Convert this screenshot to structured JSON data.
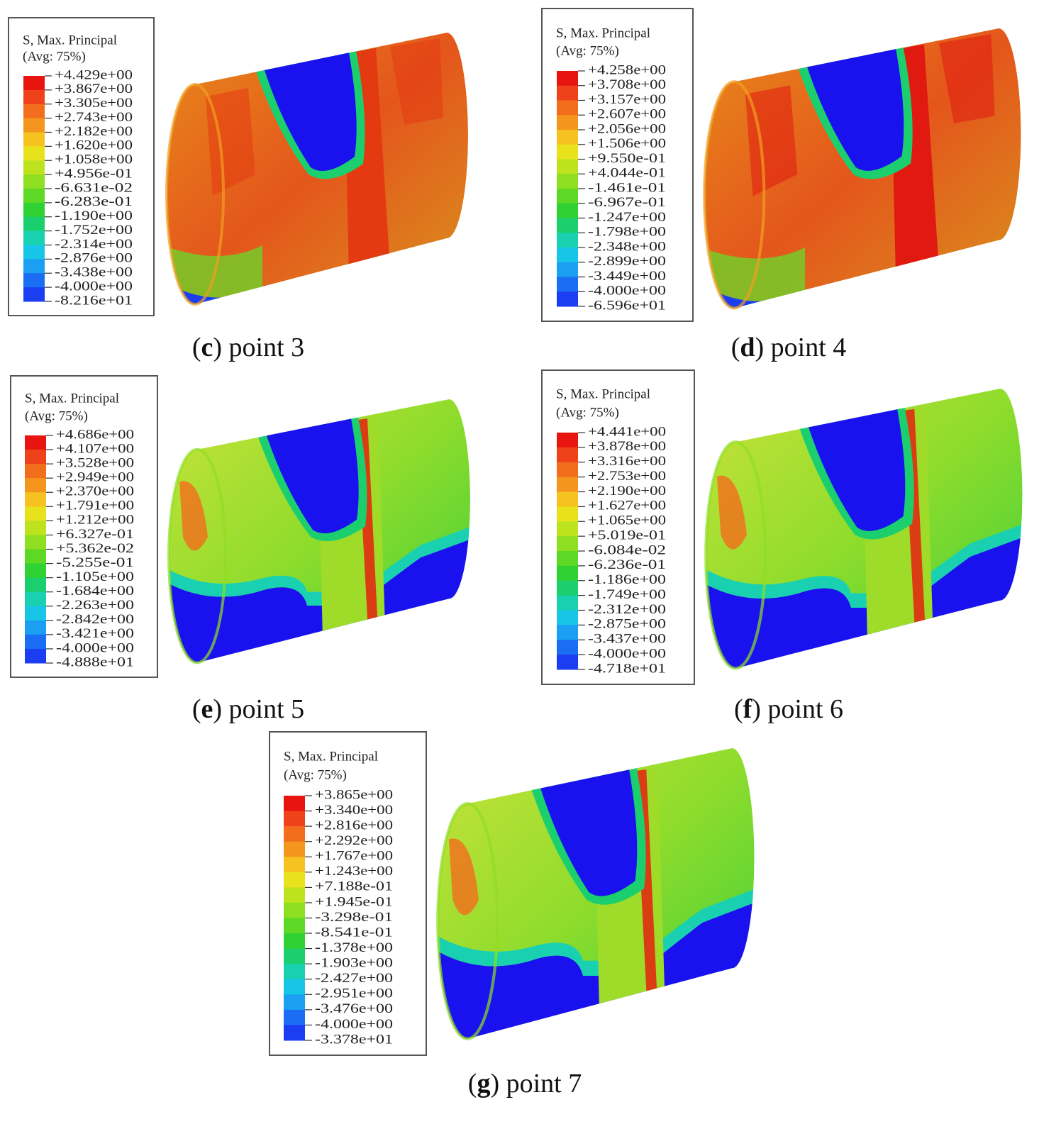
{
  "panels": [
    {
      "legend_title": [
        "S, Max. Principal",
        "(Avg: 75%)"
      ],
      "labels": [
        "+4.429e+00",
        "+3.867e+00",
        "+3.305e+00",
        "+2.743e+00",
        "+2.182e+00",
        "+1.620e+00",
        "+1.058e+00",
        "+4.956e-01",
        "-6.631e-02",
        "-6.283e-01",
        "-1.190e+00",
        "-1.752e+00",
        "-2.314e+00",
        "-2.876e+00",
        "-3.438e+00",
        "-4.000e+00",
        "-8.216e+01"
      ],
      "caption": [
        "(",
        "c",
        ") point 3"
      ]
    },
    {
      "legend_title": [
        "S, Max. Principal",
        "(Avg: 75%)"
      ],
      "labels": [
        "+4.258e+00",
        "+3.708e+00",
        "+3.157e+00",
        "+2.607e+00",
        "+2.056e+00",
        "+1.506e+00",
        "+9.550e-01",
        "+4.044e-01",
        "-1.461e-01",
        "-6.967e-01",
        "-1.247e+00",
        "-1.798e+00",
        "-2.348e+00",
        "-2.899e+00",
        "-3.449e+00",
        "-4.000e+00",
        "-6.596e+01"
      ],
      "caption": [
        "(",
        "d",
        ") point 4"
      ]
    },
    {
      "legend_title": [
        "S, Max. Principal",
        "(Avg: 75%)"
      ],
      "labels": [
        "+4.686e+00",
        "+4.107e+00",
        "+3.528e+00",
        "+2.949e+00",
        "+2.370e+00",
        "+1.791e+00",
        "+1.212e+00",
        "+6.327e-01",
        "+5.362e-02",
        "-5.255e-01",
        "-1.105e+00",
        "-1.684e+00",
        "-2.263e+00",
        "-2.842e+00",
        "-3.421e+00",
        "-4.000e+00",
        "-4.888e+01"
      ],
      "caption": [
        "(",
        "e",
        ") point 5"
      ]
    },
    {
      "legend_title": [
        "S, Max. Principal",
        "(Avg: 75%)"
      ],
      "labels": [
        "+4.441e+00",
        "+3.878e+00",
        "+3.316e+00",
        "+2.753e+00",
        "+2.190e+00",
        "+1.627e+00",
        "+1.065e+00",
        "+5.019e-01",
        "-6.084e-02",
        "-6.236e-01",
        "-1.186e+00",
        "-1.749e+00",
        "-2.312e+00",
        "-2.875e+00",
        "-3.437e+00",
        "-4.000e+00",
        "-4.718e+01"
      ],
      "caption": [
        "(",
        "f",
        ") point 6"
      ]
    },
    {
      "legend_title": [
        "S, Max. Principal",
        "(Avg: 75%)"
      ],
      "labels": [
        "+3.865e+00",
        "+3.340e+00",
        "+2.816e+00",
        "+2.292e+00",
        "+1.767e+00",
        "+1.243e+00",
        "+7.188e-01",
        "+1.945e-01",
        "-3.298e-01",
        "-8.541e-01",
        "-1.378e+00",
        "-1.903e+00",
        "-2.427e+00",
        "-2.951e+00",
        "-3.476e+00",
        "-4.000e+00",
        "-3.378e+01"
      ],
      "caption": [
        "(",
        "g",
        ") point 7"
      ]
    }
  ]
}
